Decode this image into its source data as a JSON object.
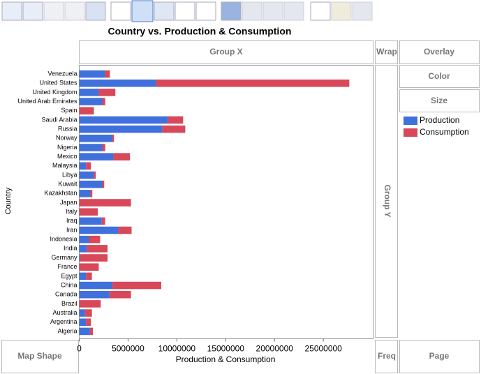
{
  "chart_data": {
    "type": "stacked-bar-horizontal",
    "title": "Country vs. Production & Consumption",
    "x_label": "Production & Consumption",
    "y_label": "Country",
    "categories": [
      "Venezuela",
      "United States",
      "United Kingdom",
      "United Arab Emirates",
      "Spain",
      "Saudi Arabia",
      "Russia",
      "Norway",
      "Nigeria",
      "Mexico",
      "Malaysia",
      "Libya",
      "Kuwait",
      "Kazakhstan",
      "Japan",
      "Italy",
      "Iraq",
      "Iran",
      "Indonesia",
      "India",
      "Germany",
      "France",
      "Egypt",
      "China",
      "Canada",
      "Brazil",
      "Australia",
      "Argentina",
      "Algeria"
    ],
    "series": [
      {
        "name": "Production",
        "color": "#4070dc",
        "values": [
          2640000,
          7860000,
          2000000,
          2360000,
          0,
          9070000,
          8500000,
          3360000,
          2360000,
          3500000,
          700000,
          1500000,
          2360000,
          1140000,
          0,
          0,
          2300000,
          4000000,
          1000000,
          800000,
          100000,
          0,
          700000,
          3400000,
          3100000,
          0,
          600000,
          700000,
          1100000
        ]
      },
      {
        "name": "Consumption",
        "color": "#d84858",
        "values": [
          500000,
          19800000,
          1700000,
          300000,
          1500000,
          1570000,
          2360000,
          200000,
          300000,
          1700000,
          500000,
          200000,
          200000,
          200000,
          5300000,
          1900000,
          350000,
          1360000,
          1140000,
          2100000,
          2800000,
          2000000,
          600000,
          5000000,
          2200000,
          2200000,
          700000,
          500000,
          300000
        ]
      }
    ],
    "xlim": [
      0,
      30100000
    ],
    "xticks": [
      0,
      5000000,
      10000000,
      15000000,
      20000000,
      25000000
    ]
  },
  "ui": {
    "group_x": "Group X",
    "wrap": "Wrap",
    "overlay": "Overlay",
    "color": "Color",
    "size": "Size",
    "group_y": "Group Y",
    "map_shape": "Map Shape",
    "freq": "Freq",
    "page": "Page"
  }
}
